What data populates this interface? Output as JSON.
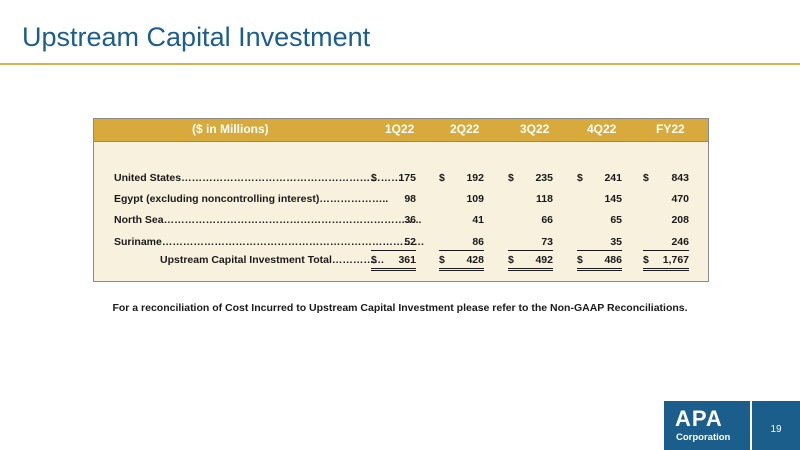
{
  "page": {
    "title": "Upstream Capital Investment",
    "page_number": "19",
    "footnote": "For a reconciliation of Cost Incurred to Upstream Capital Investment please refer to the Non-GAAP Reconciliations."
  },
  "logo": {
    "main": "APA",
    "sub": "Corporation"
  },
  "table": {
    "headers": [
      "($ in Millions)",
      "1Q22",
      "2Q22",
      "3Q22",
      "4Q22",
      "FY22"
    ],
    "rows": [
      {
        "label": "United States………………………………………………………",
        "dollar": "$",
        "values": [
          "175",
          "192",
          "235",
          "241",
          "843"
        ]
      },
      {
        "label": "Egypt (excluding noncontrolling interest)………………..",
        "dollar": "",
        "values": [
          "98",
          "109",
          "118",
          "145",
          "470"
        ]
      },
      {
        "label": "North Sea………………………………………………………………..",
        "dollar": "",
        "values": [
          "36",
          "41",
          "66",
          "65",
          "208"
        ]
      },
      {
        "label": "Suriname…………………………………………………………………",
        "dollar": "",
        "values": [
          "52",
          "86",
          "73",
          "35",
          "246"
        ]
      },
      {
        "label": "Upstream Capital Investment Total……………",
        "dollar": "$",
        "values": [
          "361",
          "428",
          "492",
          "486",
          "1,767"
        ]
      }
    ]
  },
  "colors": {
    "title": "#1b5e8c",
    "rule": "#d8b24e",
    "header": "#d8a93b",
    "table_bg": "#f8f1de",
    "logo_bg": "#1b5e8c"
  }
}
